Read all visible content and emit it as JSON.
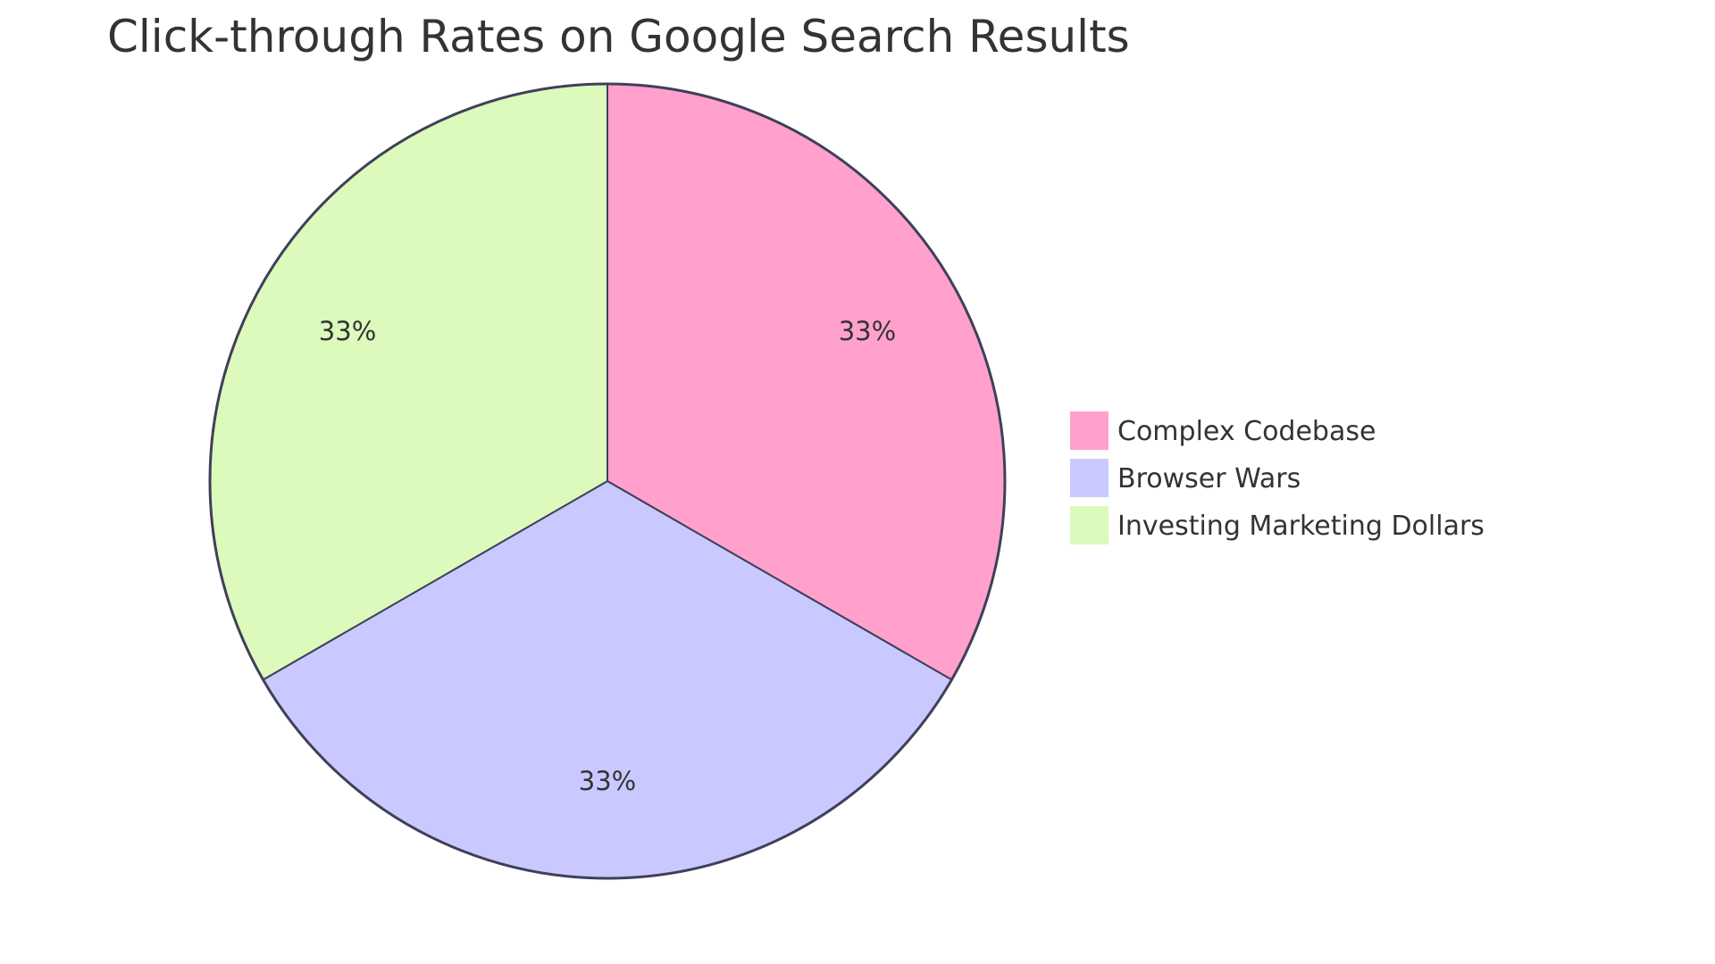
{
  "chart_data": {
    "type": "pie",
    "title": "Click-through Rates on Google Search Results",
    "slices": [
      {
        "label": "Complex Codebase",
        "value": 33.33,
        "display": "33%",
        "color": "#FFA1CC"
      },
      {
        "label": "Browser Wars",
        "value": 33.33,
        "display": "33%",
        "color": "#C9C9FF"
      },
      {
        "label": "Investing Marketing Dollars",
        "value": 33.33,
        "display": "33%",
        "color": "#DBFABB"
      }
    ],
    "start_angle": "12 o'clock, clockwise",
    "stroke_color": "#3F3F5A",
    "legend_placement": "right"
  }
}
